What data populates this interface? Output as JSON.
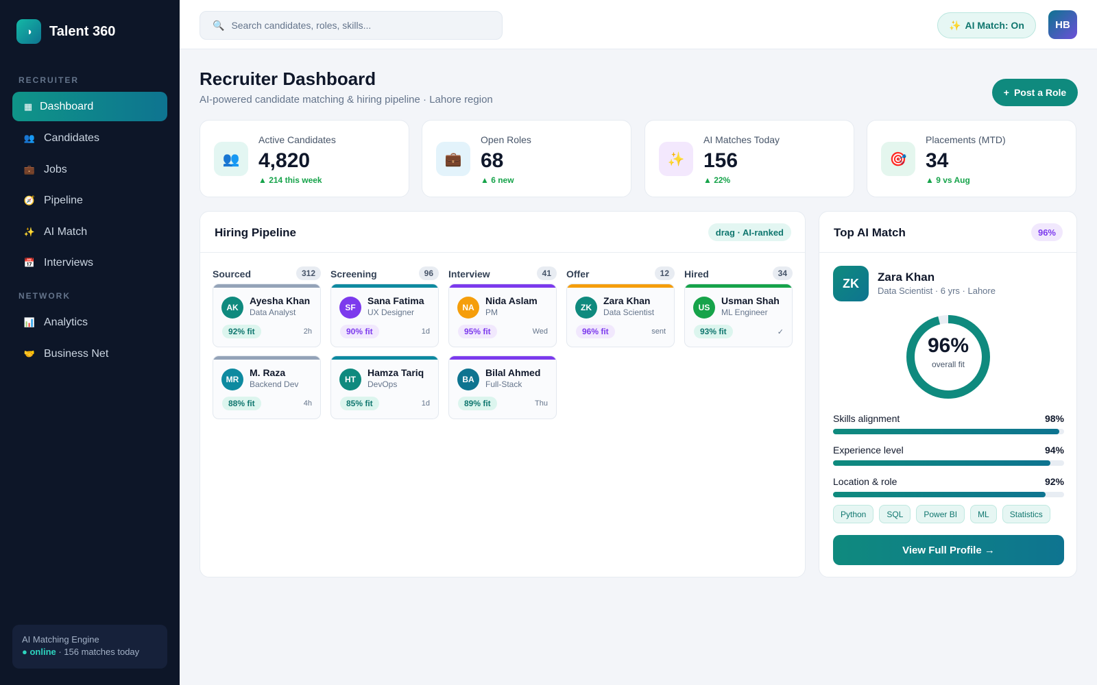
{
  "app": {
    "name": "Talent 360",
    "logo_glyph": "◑"
  },
  "sidebar": {
    "sections": [
      "RECRUITER",
      "NETWORK"
    ],
    "items": [
      {
        "label": "Dashboard",
        "icon": "dashboard-icon",
        "glyph": "▦"
      },
      {
        "label": "Candidates",
        "icon": "people-icon",
        "glyph": "👥"
      },
      {
        "label": "Jobs",
        "icon": "briefcase-icon",
        "glyph": "💼"
      },
      {
        "label": "Pipeline",
        "icon": "compass-icon",
        "glyph": "🧭"
      },
      {
        "label": "AI Match",
        "icon": "sparkles-icon",
        "glyph": "✨"
      },
      {
        "label": "Interviews",
        "icon": "calendar-icon",
        "glyph": "📅"
      },
      {
        "label": "Analytics",
        "icon": "bar-chart-icon",
        "glyph": "📊"
      },
      {
        "label": "Business Net",
        "icon": "handshake-icon",
        "glyph": "🤝"
      }
    ],
    "engine": {
      "title": "AI Matching Engine",
      "status": "● online",
      "detail": " · 156 matches today"
    }
  },
  "topbar": {
    "search_placeholder": "Search candidates, roles, skills...",
    "ai_toggle": "AI Match: On",
    "ai_glyph": "✨",
    "user_initials": "HB"
  },
  "header": {
    "title": "Recruiter Dashboard",
    "subtitle": "AI-powered candidate matching & hiring pipeline · Lahore region",
    "post_role": "Post a Role",
    "post_role_glyph": "+"
  },
  "stats": [
    {
      "label": "Active Candidates",
      "value": "4,820",
      "delta": "▲ 214 this week",
      "icon": "people-icon",
      "glyph": "👥",
      "bg": "#e3f6f2"
    },
    {
      "label": "Open Roles",
      "value": "68",
      "delta": "▲ 6 new",
      "icon": "briefcase-icon",
      "glyph": "💼",
      "bg": "#e3f3fb"
    },
    {
      "label": "AI Matches Today",
      "value": "156",
      "delta": "▲ 22%",
      "icon": "sparkles-icon",
      "glyph": "✨",
      "bg": "#f3e8fd"
    },
    {
      "label": "Placements (MTD)",
      "value": "34",
      "delta": "▲ 9 vs Aug",
      "icon": "target-icon",
      "glyph": "🎯",
      "bg": "#e4f6ee"
    }
  ],
  "pipeline": {
    "title": "Hiring Pipeline",
    "badge": "drag · AI-ranked",
    "columns": [
      {
        "title": "Sourced",
        "count": "312",
        "bar": "#94a3b8",
        "cards": [
          {
            "initials": "AK",
            "name": "Ayesha Khan",
            "role": "Data Analyst",
            "fit": "92% fit",
            "time": "2h",
            "av": "#0f8a7e",
            "fitbg": "#dcf5ee",
            "fitfg": "#0f766e"
          },
          {
            "initials": "MR",
            "name": "M. Raza",
            "role": "Backend Dev",
            "fit": "88% fit",
            "time": "4h",
            "av": "#0e8aa0",
            "fitbg": "#dcf5ee",
            "fitfg": "#0f766e"
          }
        ]
      },
      {
        "title": "Screening",
        "count": "96",
        "bar": "#0e8aa0",
        "cards": [
          {
            "initials": "SF",
            "name": "Sana Fatima",
            "role": "UX Designer",
            "fit": "90% fit",
            "time": "1d",
            "av": "#7c3aed",
            "fitbg": "#f1e8fd",
            "fitfg": "#7c3aed"
          },
          {
            "initials": "HT",
            "name": "Hamza Tariq",
            "role": "DevOps",
            "fit": "85% fit",
            "time": "1d",
            "av": "#0f8a7e",
            "fitbg": "#dcf5ee",
            "fitfg": "#0f766e"
          }
        ]
      },
      {
        "title": "Interview",
        "count": "41",
        "bar": "#7c3aed",
        "cards": [
          {
            "initials": "NA",
            "name": "Nida Aslam",
            "role": "PM",
            "fit": "95% fit",
            "time": "Wed",
            "av": "#f59e0b",
            "fitbg": "#f1e8fd",
            "fitfg": "#7c3aed"
          },
          {
            "initials": "BA",
            "name": "Bilal Ahmed",
            "role": "Full-Stack",
            "fit": "89% fit",
            "time": "Thu",
            "av": "#0e7490",
            "fitbg": "#dcf5ee",
            "fitfg": "#0f766e"
          }
        ]
      },
      {
        "title": "Offer",
        "count": "12",
        "bar": "#f59e0b",
        "cards": [
          {
            "initials": "ZK",
            "name": "Zara Khan",
            "role": "Data Scientist",
            "fit": "96% fit",
            "time": "sent",
            "av": "#0f8a7e",
            "fitbg": "#f1e8fd",
            "fitfg": "#7c3aed"
          }
        ]
      },
      {
        "title": "Hired",
        "count": "34",
        "bar": "#16a34a",
        "cards": [
          {
            "initials": "US",
            "name": "Usman Shah",
            "role": "ML Engineer",
            "fit": "93% fit",
            "time": "✓",
            "av": "#16a34a",
            "fitbg": "#dcf5ee",
            "fitfg": "#0f766e"
          }
        ]
      }
    ]
  },
  "top_match": {
    "title": "Top AI Match",
    "badge": "96%",
    "initials": "ZK",
    "name": "Zara Khan",
    "subtitle": "Data Scientist · 6 yrs · Lahore",
    "overall_pct": "96%",
    "overall_fraction": 0.96,
    "overall_label": "overall fit",
    "metrics": [
      {
        "label": "Skills alignment",
        "value": "98%",
        "fraction": 0.98
      },
      {
        "label": "Experience level",
        "value": "94%",
        "fraction": 0.94
      },
      {
        "label": "Location & role",
        "value": "92%",
        "fraction": 0.92
      }
    ],
    "skills": [
      "Python",
      "SQL",
      "Power BI",
      "ML",
      "Statistics"
    ],
    "cta": "View Full Profile →"
  }
}
